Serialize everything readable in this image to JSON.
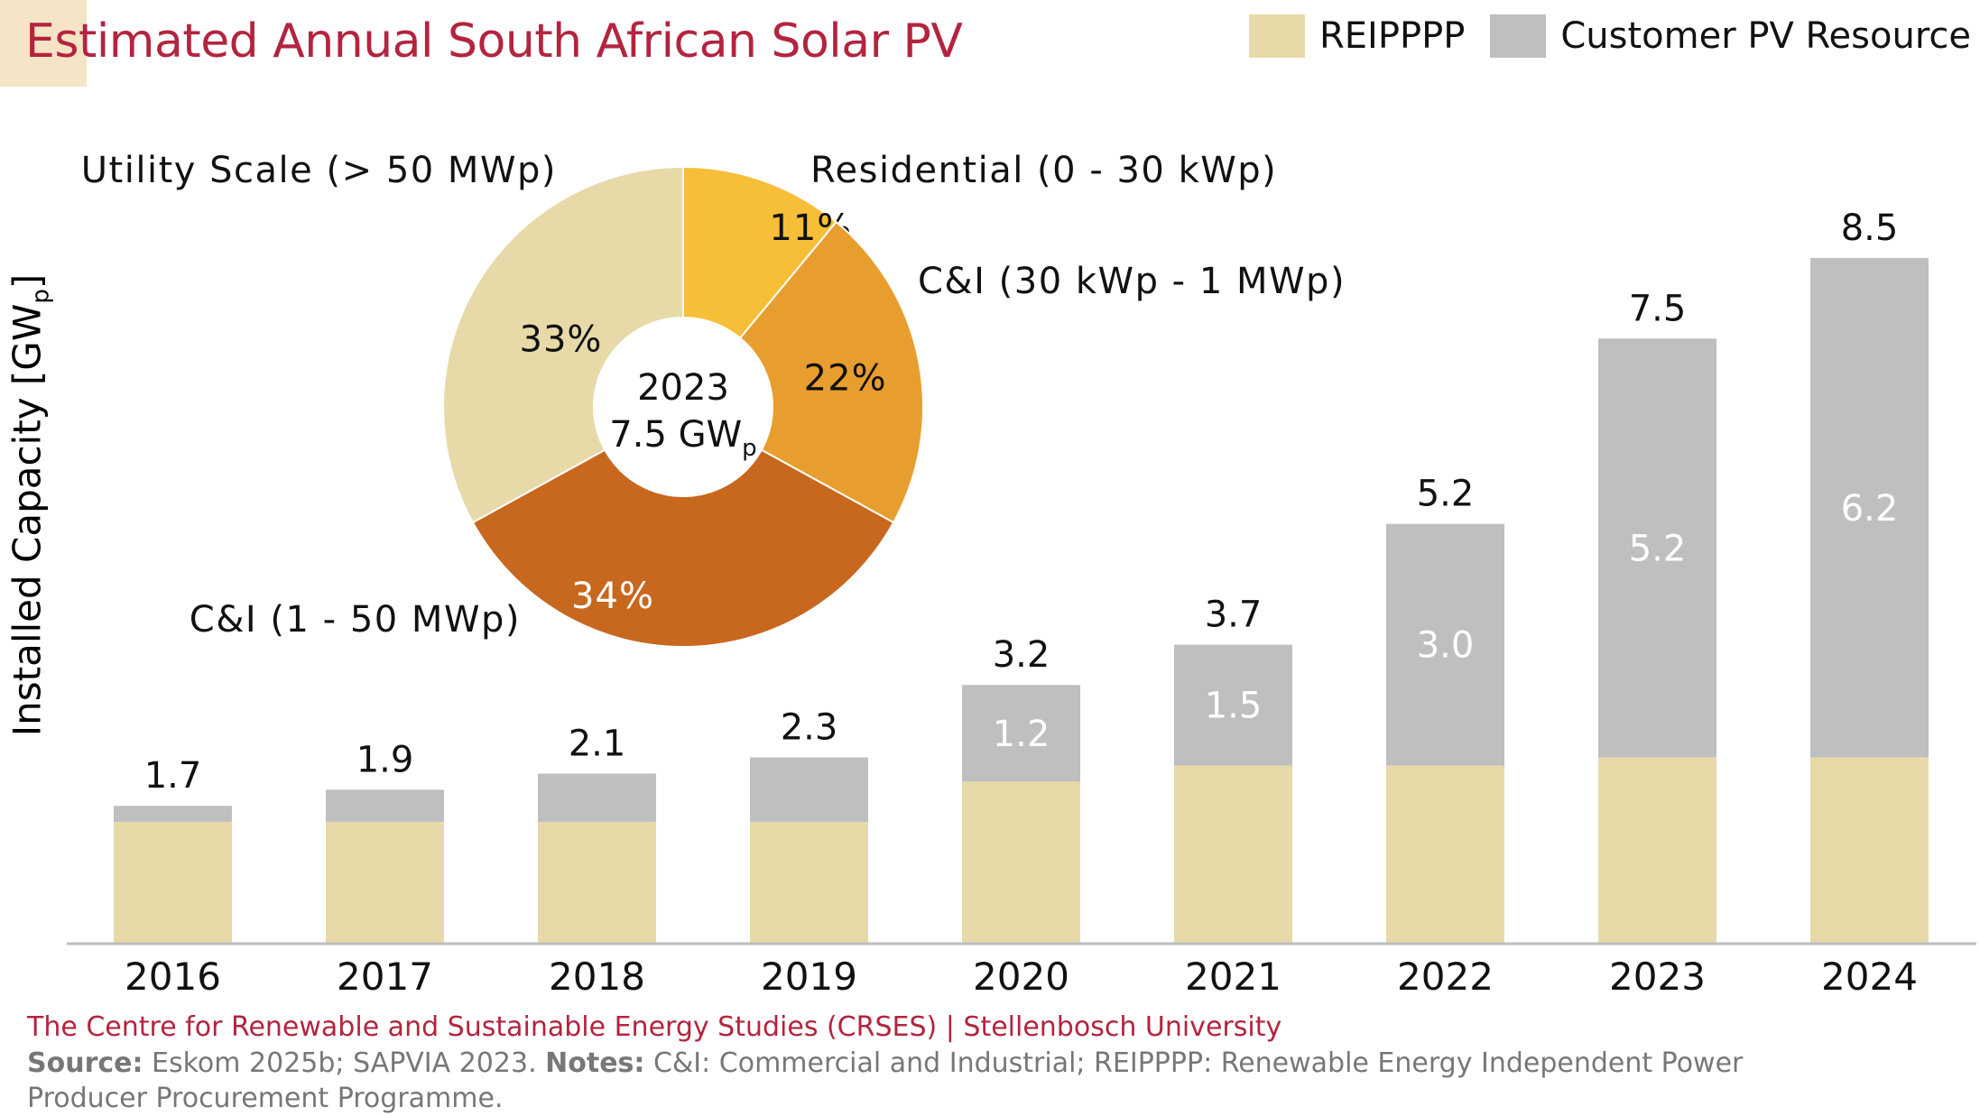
{
  "title": "Estimated Annual South African Solar PV",
  "footer": {
    "org": "The Centre for Renewable and Sustainable Energy Studies (CRSES) | Stellenbosch University",
    "source_label": "Source:",
    "source_text": " Eskom 2025b; SAPVIA 2023. ",
    "notes_label": "Notes:",
    "notes_text": " C&I: Commercial and Industrial; REIPPPP: Renewable Energy Independent Power Producer Procurement Programme."
  },
  "colors": {
    "reipppp": "#e8d9a9",
    "customer": "#bfbfbf",
    "title": "#b3243f",
    "pie_residential": "#f7be37",
    "pie_ci_small": "#e89e2e",
    "pie_ci_large": "#c8671e",
    "pie_utility": "#e8d9a9"
  },
  "chart_data": [
    {
      "type": "bar",
      "stacked": true,
      "ylabel": "Installed Capacity [GW",
      "ylabel_sub": "p",
      "ylabel_end": "]",
      "ylim": [
        0,
        9
      ],
      "grid": false,
      "legend_position": "top-right",
      "categories": [
        "2016",
        "2017",
        "2018",
        "2019",
        "2020",
        "2021",
        "2022",
        "2023",
        "2024"
      ],
      "series": [
        {
          "name": "REIPPPP",
          "values": [
            1.5,
            1.5,
            1.5,
            1.5,
            2.0,
            2.2,
            2.2,
            2.3,
            2.3
          ],
          "labels": [
            "",
            "",
            "",
            "",
            "",
            "",
            "",
            "",
            ""
          ]
        },
        {
          "name": "Customer PV Resource",
          "values": [
            0.2,
            0.4,
            0.6,
            0.8,
            1.2,
            1.5,
            3.0,
            5.2,
            6.2
          ],
          "labels": [
            "",
            "",
            "",
            "",
            "1.2",
            "1.5",
            "3.0",
            "5.2",
            "6.2"
          ]
        }
      ],
      "totals": [
        "1.7",
        "1.9",
        "2.1",
        "2.3",
        "3.2",
        "3.7",
        "5.2",
        "7.5",
        "8.5"
      ]
    },
    {
      "type": "pie",
      "donut": true,
      "center_year": "2023",
      "center_value": "7.5 GW",
      "center_unit_sub": "p",
      "slices": [
        {
          "name": "Residential (0 - 30 kWp)",
          "value": 11,
          "label": "11%"
        },
        {
          "name": "C&I (30 kWp - 1 MWp)",
          "value": 22,
          "label": "22%"
        },
        {
          "name": "C&I (1 - 50 MWp)",
          "value": 34,
          "label": "34%"
        },
        {
          "name": "Utility Scale (> 50 MWp)",
          "value": 33,
          "label": "33%"
        }
      ]
    }
  ]
}
